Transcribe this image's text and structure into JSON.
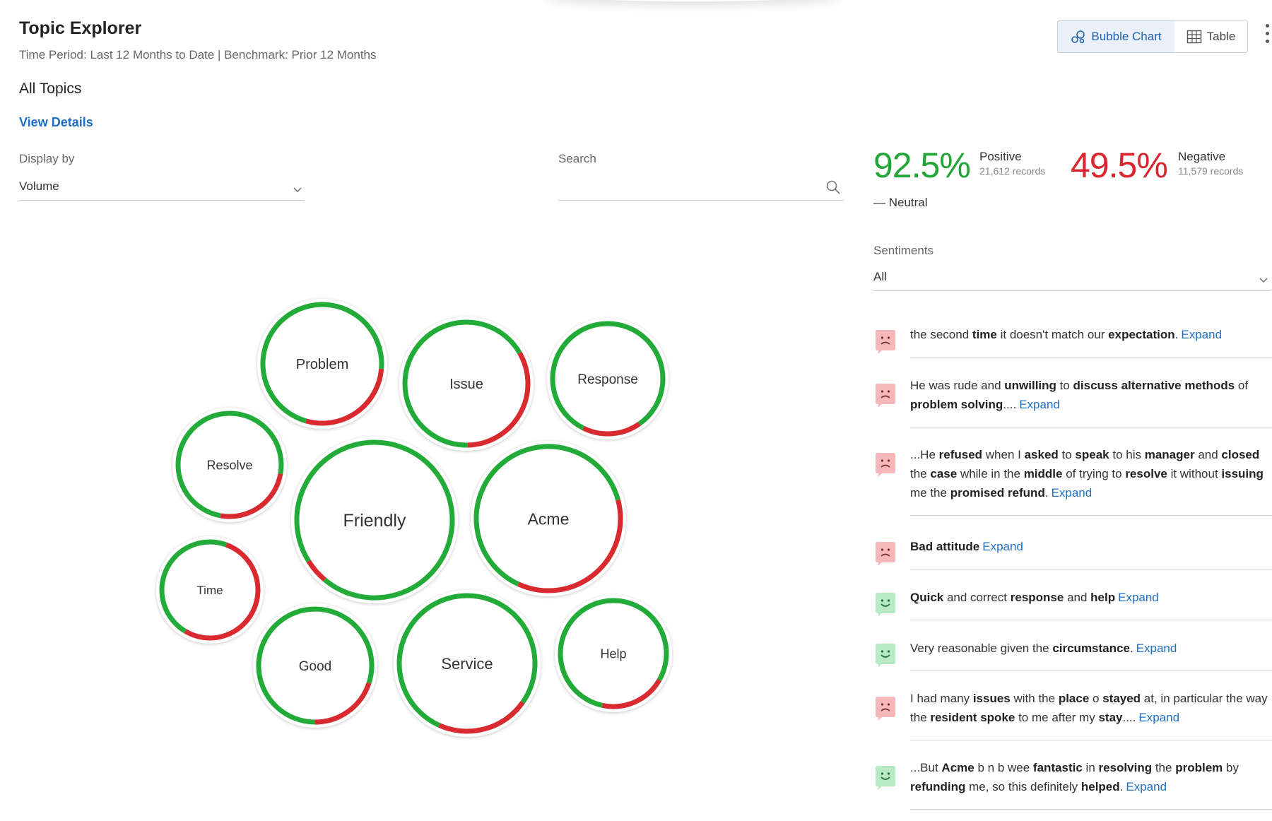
{
  "header": {
    "title": "Topic Explorer",
    "subtitle": "Time Period: Last 12 Months to Date | Benchmark: Prior 12 Months"
  },
  "section": {
    "title": "All Topics",
    "view_details": "View Details"
  },
  "display_by": {
    "label": "Display by",
    "value": "Volume"
  },
  "search": {
    "label": "Search",
    "placeholder": "",
    "value": ""
  },
  "view_toggle": {
    "bubble_chart": "Bubble Chart",
    "table": "Table",
    "selected": "Bubble Chart"
  },
  "summary": {
    "positive": {
      "pct": "92.5%",
      "label": "Positive",
      "records": "21,612 records",
      "color": "#22a638"
    },
    "negative": {
      "pct": "49.5%",
      "label": "Negative",
      "records": "11,579 records",
      "color": "#d9262e"
    },
    "neutral_label": "— Neutral"
  },
  "sentiments": {
    "label": "Sentiments",
    "value": "All"
  },
  "colors": {
    "positive": "#22ab38",
    "negative": "#d82a2f",
    "link": "#1f6fc5",
    "negative_icon_bg": "#f4b8bb",
    "positive_icon_bg": "#b8ebc4"
  },
  "expand_label": "Expand",
  "feed": [
    {
      "sentiment": "negative",
      "icon": "sad-face-icon",
      "segments": [
        [
          "the second ",
          false
        ],
        [
          "time",
          true
        ],
        [
          " it doesn't match our ",
          false
        ],
        [
          "expectation",
          true
        ],
        [
          ".",
          false
        ]
      ]
    },
    {
      "sentiment": "negative",
      "icon": "sad-face-icon",
      "segments": [
        [
          "He was rude and ",
          false
        ],
        [
          "unwilling",
          true
        ],
        [
          " to ",
          false
        ],
        [
          "discuss alternative methods",
          true
        ],
        [
          " of ",
          false
        ],
        [
          "problem solving",
          true
        ],
        [
          "....",
          false
        ]
      ]
    },
    {
      "sentiment": "negative",
      "icon": "sad-face-icon",
      "segments": [
        [
          "...He ",
          false
        ],
        [
          "refused",
          true
        ],
        [
          " when I ",
          false
        ],
        [
          "asked",
          true
        ],
        [
          " to ",
          false
        ],
        [
          "speak",
          true
        ],
        [
          " to his ",
          false
        ],
        [
          "manager",
          true
        ],
        [
          " and ",
          false
        ],
        [
          "closed",
          true
        ],
        [
          " the ",
          false
        ],
        [
          "case",
          true
        ],
        [
          " while in the ",
          false
        ],
        [
          "middle",
          true
        ],
        [
          " of trying to ",
          false
        ],
        [
          "resolve",
          true
        ],
        [
          " it without ",
          false
        ],
        [
          "issuing",
          true
        ],
        [
          " me the ",
          false
        ],
        [
          "promised refund",
          true
        ],
        [
          ".",
          false
        ]
      ]
    },
    {
      "sentiment": "negative",
      "icon": "sad-face-icon",
      "segments": [
        [
          "Bad attitude",
          true
        ]
      ]
    },
    {
      "sentiment": "positive",
      "icon": "happy-face-icon",
      "segments": [
        [
          "Quick",
          true
        ],
        [
          " and correct ",
          false
        ],
        [
          "response",
          true
        ],
        [
          " and ",
          false
        ],
        [
          "help",
          true
        ]
      ]
    },
    {
      "sentiment": "positive",
      "icon": "happy-face-icon",
      "segments": [
        [
          "Very reasonable given the ",
          false
        ],
        [
          "circumstance",
          true
        ],
        [
          ".",
          false
        ]
      ]
    },
    {
      "sentiment": "negative",
      "icon": "sad-face-icon",
      "segments": [
        [
          "I had many ",
          false
        ],
        [
          "issues",
          true
        ],
        [
          " with the ",
          false
        ],
        [
          "place",
          true
        ],
        [
          " o ",
          false
        ],
        [
          "stayed",
          true
        ],
        [
          " at, in particular the way the ",
          false
        ],
        [
          "resident spoke",
          true
        ],
        [
          " to me after my ",
          false
        ],
        [
          "stay",
          true
        ],
        [
          "....",
          false
        ]
      ]
    },
    {
      "sentiment": "positive",
      "icon": "happy-face-icon",
      "segments": [
        [
          "...But ",
          false
        ],
        [
          "Acme",
          true
        ],
        [
          " b n b wee ",
          false
        ],
        [
          "fantastic",
          true
        ],
        [
          " in ",
          false
        ],
        [
          "resolving",
          true
        ],
        [
          " the ",
          false
        ],
        [
          "problem",
          true
        ],
        [
          " by ",
          false
        ],
        [
          "refunding",
          true
        ],
        [
          " me, so this definitely ",
          false
        ],
        [
          "helped",
          true
        ],
        [
          ".",
          false
        ]
      ]
    }
  ],
  "chart_data": {
    "type": "bubble",
    "size_metric": "Volume",
    "topics": [
      {
        "name": "Problem",
        "negative_share": 0.28
      },
      {
        "name": "Issue",
        "negative_share": 0.33
      },
      {
        "name": "Response",
        "negative_share": 0.17
      },
      {
        "name": "Resolve",
        "negative_share": 0.25
      },
      {
        "name": "Friendly",
        "negative_share": 0.05
      },
      {
        "name": "Acme",
        "negative_share": 0.36
      },
      {
        "name": "Time",
        "negative_share": 0.53
      },
      {
        "name": "Good",
        "negative_share": 0.2
      },
      {
        "name": "Service",
        "negative_share": 0.22
      },
      {
        "name": "Help",
        "negative_share": 0.2
      }
    ]
  }
}
